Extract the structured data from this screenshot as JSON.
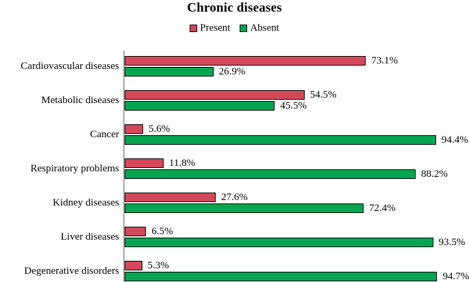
{
  "title": "Chronic diseases",
  "colors": {
    "present": "#d4495a",
    "absent": "#06a550",
    "bar_border": "#000000",
    "axis_line": "#a6a6a6",
    "text": "#000000",
    "background": "#ffffff"
  },
  "legend": {
    "position": "top",
    "items": [
      {
        "label": "Present",
        "color": "#d4495a"
      },
      {
        "label": "Absent",
        "color": "#06a550"
      }
    ]
  },
  "chart_data": {
    "type": "bar",
    "orientation": "horizontal",
    "title": "Chronic diseases",
    "xlabel": "",
    "ylabel": "",
    "xlim": [
      0,
      100
    ],
    "grid": false,
    "legend_position": "top",
    "value_label_suffix": "%",
    "categories": [
      "Cardiovascular diseases",
      "Metabolic diseases",
      "Cancer",
      "Respiratory problems",
      "Kidney diseases",
      "Liver diseases",
      "Degenerative disorders"
    ],
    "series": [
      {
        "name": "Present",
        "color": "#d4495a",
        "values": [
          73.1,
          54.5,
          5.6,
          11.8,
          27.6,
          6.5,
          5.3
        ],
        "labels": [
          "73.1%",
          "54.5%",
          "5.6%",
          "11.8%",
          "27.6%",
          "6.5%",
          "5.3%"
        ]
      },
      {
        "name": "Absent",
        "color": "#06a550",
        "values": [
          26.9,
          45.5,
          94.4,
          88.2,
          72.4,
          93.5,
          94.7
        ],
        "labels": [
          "26.9%",
          "45.5%",
          "94.4%",
          "88.2%",
          "72.4%",
          "93.5%",
          "94.7%"
        ]
      }
    ]
  }
}
